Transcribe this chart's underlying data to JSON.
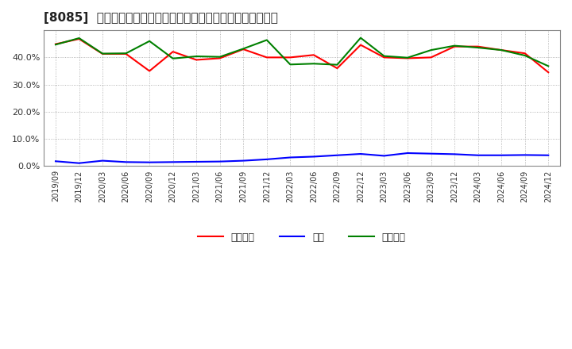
{
  "title": "[8085]  売上債権、在庫、買入債務の総資産に対する比率の推移",
  "x_labels": [
    "2019/09",
    "2019/12",
    "2020/03",
    "2020/06",
    "2020/09",
    "2020/12",
    "2021/03",
    "2021/06",
    "2021/09",
    "2021/12",
    "2022/03",
    "2022/06",
    "2022/09",
    "2022/12",
    "2023/03",
    "2023/06",
    "2023/09",
    "2023/12",
    "2024/03",
    "2024/06",
    "2024/09",
    "2024/12"
  ],
  "urijo": [
    0.449,
    0.468,
    0.413,
    0.413,
    0.35,
    0.421,
    0.391,
    0.397,
    0.43,
    0.4,
    0.4,
    0.409,
    0.36,
    0.446,
    0.4,
    0.397,
    0.4,
    0.44,
    0.44,
    0.427,
    0.415,
    0.345
  ],
  "zaiko": [
    0.018,
    0.011,
    0.02,
    0.015,
    0.014,
    0.015,
    0.016,
    0.017,
    0.02,
    0.025,
    0.032,
    0.035,
    0.04,
    0.045,
    0.038,
    0.048,
    0.046,
    0.044,
    0.04,
    0.04,
    0.041,
    0.04
  ],
  "kaiire": [
    0.447,
    0.471,
    0.414,
    0.415,
    0.46,
    0.396,
    0.404,
    0.402,
    0.432,
    0.464,
    0.374,
    0.377,
    0.373,
    0.472,
    0.405,
    0.399,
    0.427,
    0.443,
    0.436,
    0.427,
    0.407,
    0.368
  ],
  "urijo_color": "#ff0000",
  "zaiko_color": "#0000ff",
  "kaiire_color": "#008000",
  "background_color": "#ffffff",
  "grid_color": "#999999",
  "ylim": [
    0.0,
    0.5
  ],
  "yticks": [
    0.0,
    0.1,
    0.2,
    0.3,
    0.4
  ],
  "legend_labels": [
    "売上債権",
    "在庫",
    "買入債務"
  ],
  "title_fontsize": 11,
  "tick_fontsize": 8,
  "legend_fontsize": 9
}
